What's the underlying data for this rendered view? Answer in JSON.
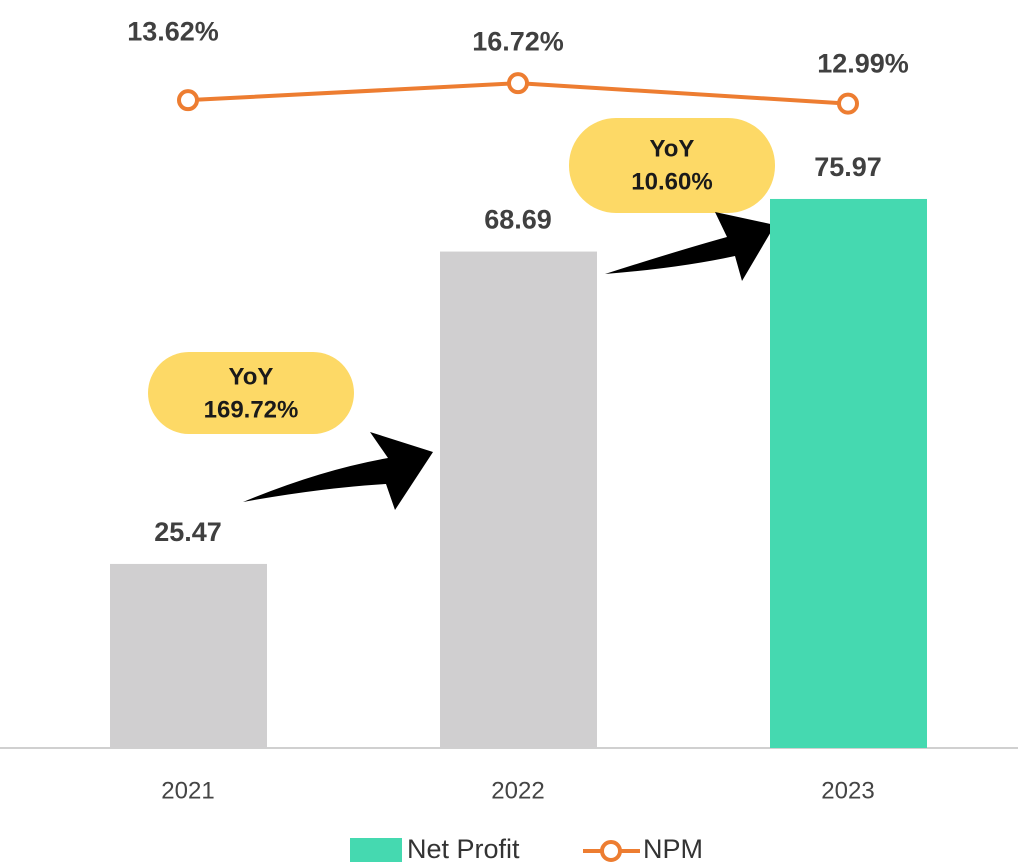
{
  "chart_data": {
    "type": "bar",
    "categories": [
      "2021",
      "2022",
      "2023"
    ],
    "series": [
      {
        "name": "Net Profit",
        "color": "#45d9b0",
        "colors": [
          "#d0cfd0",
          "#d0cfd0",
          "#45d9b0"
        ],
        "values": [
          25.47,
          68.69,
          75.97
        ]
      },
      {
        "name": "NPM",
        "type": "line",
        "axis": "y2",
        "color": "#ed7d31",
        "values": [
          13.62,
          16.72,
          12.99
        ],
        "value_labels": [
          "13.62%",
          "16.72%",
          "12.99%"
        ]
      }
    ],
    "ylim": [
      0,
      103.5
    ],
    "y2lim": [
      -104.6,
      31.9
    ],
    "annotations": [
      {
        "lines": [
          "YoY",
          "169.72%"
        ]
      },
      {
        "lines": [
          "YoY",
          "10.60%"
        ]
      }
    ]
  }
}
